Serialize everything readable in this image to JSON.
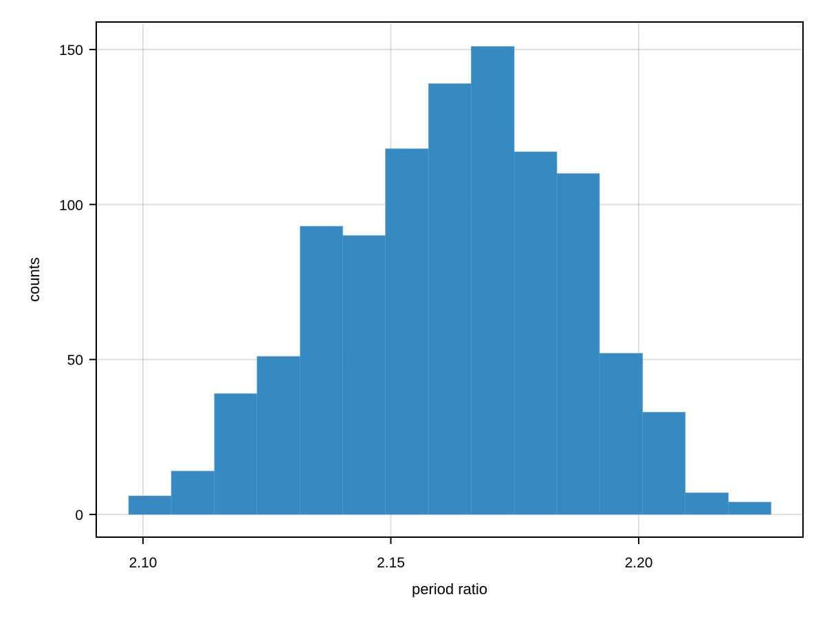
{
  "chart_data": {
    "type": "bar",
    "subtype": "histogram",
    "title": "",
    "xlabel": "period ratio",
    "ylabel": "counts",
    "bin_start": 2.0971,
    "bin_width": 0.008643,
    "bin_edges": [
      2.0971,
      2.1057,
      2.1144,
      2.123,
      2.1317,
      2.1403,
      2.1489,
      2.1576,
      2.1662,
      2.1749,
      2.1835,
      2.1921,
      2.2008,
      2.2094,
      2.2181,
      2.2267
    ],
    "values": [
      6,
      14,
      39,
      51,
      93,
      90,
      118,
      139,
      151,
      117,
      110,
      52,
      33,
      7,
      4
    ],
    "xlim": [
      2.091,
      2.2337
    ],
    "ylim": [
      -7.3,
      159
    ],
    "xticks": [
      2.1,
      2.15,
      2.2
    ],
    "xtick_labels": [
      "2.10",
      "2.15",
      "2.20"
    ],
    "yticks": [
      0,
      50,
      100,
      150
    ],
    "ytick_labels": [
      "0",
      "50",
      "100",
      "150"
    ],
    "grid": true,
    "legend": null,
    "bar_color": "#2b84be",
    "bar_opacity": 0.95
  }
}
